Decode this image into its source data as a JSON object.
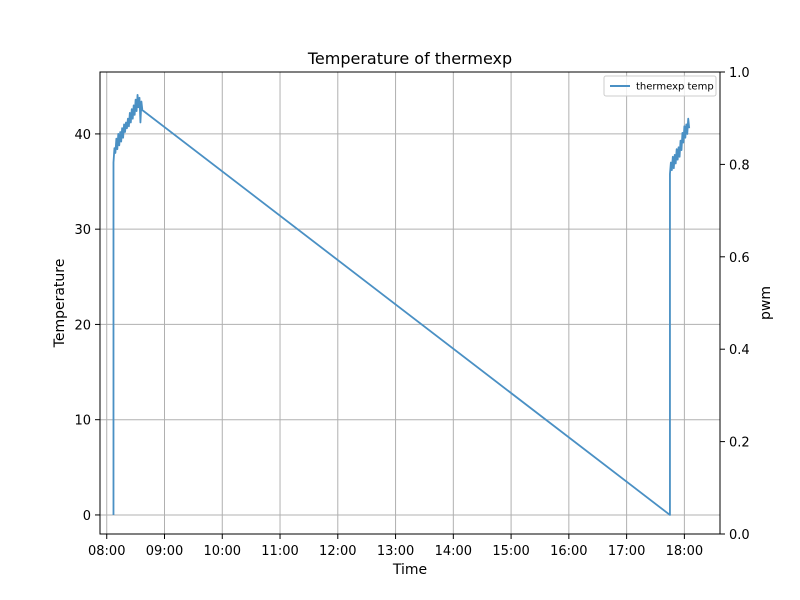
{
  "chart_data": {
    "type": "line",
    "title": "Temperature of thermexp",
    "xlabel": "Time",
    "ylabel": "Temperature",
    "y2label": "pwm",
    "x_ticks": [
      "08:00",
      "09:00",
      "10:00",
      "11:00",
      "12:00",
      "13:00",
      "14:00",
      "15:00",
      "16:00",
      "17:00",
      "18:00"
    ],
    "xlim": [
      "07:53",
      "18:37"
    ],
    "ylim": [
      -2,
      46.5
    ],
    "y_ticks": [
      0,
      10,
      20,
      30,
      40
    ],
    "y2lim": [
      0.0,
      1.0
    ],
    "y2_ticks": [
      "0.0",
      "0.2",
      "0.4",
      "0.6",
      "0.8",
      "1.0"
    ],
    "grid": true,
    "legend_position": "top-right",
    "series": [
      {
        "name": "thermexp temp",
        "color": "#4a90c4",
        "points": [
          [
            "08:07",
            0
          ],
          [
            "08:07",
            37
          ],
          [
            "08:08",
            38.5
          ],
          [
            "08:09",
            38
          ],
          [
            "08:10",
            39.5
          ],
          [
            "08:11",
            38.4
          ],
          [
            "08:12",
            40
          ],
          [
            "08:13",
            38.8
          ],
          [
            "08:14",
            40.2
          ],
          [
            "08:15",
            39.2
          ],
          [
            "08:16",
            40.6
          ],
          [
            "08:17",
            39.6
          ],
          [
            "08:18",
            41
          ],
          [
            "08:19",
            40.2
          ],
          [
            "08:20",
            41.2
          ],
          [
            "08:21",
            40.6
          ],
          [
            "08:22",
            41.6
          ],
          [
            "08:23",
            40.8
          ],
          [
            "08:24",
            42.2
          ],
          [
            "08:25",
            41.2
          ],
          [
            "08:26",
            42.6
          ],
          [
            "08:27",
            41.6
          ],
          [
            "08:28",
            43
          ],
          [
            "08:29",
            42
          ],
          [
            "08:30",
            43.6
          ],
          [
            "08:31",
            42.4
          ],
          [
            "08:32",
            44.1
          ],
          [
            "08:33",
            42.8
          ],
          [
            "08:34",
            43.8
          ],
          [
            "08:35",
            41.2
          ],
          [
            "08:36",
            43.4
          ],
          [
            "08:37",
            42.5
          ],
          [
            "17:45",
            0
          ],
          [
            "17:45",
            35.8
          ],
          [
            "17:46",
            37
          ],
          [
            "17:47",
            36.2
          ],
          [
            "17:48",
            37.6
          ],
          [
            "17:49",
            36.4
          ],
          [
            "17:50",
            37.8
          ],
          [
            "17:51",
            36.9
          ],
          [
            "17:52",
            38.4
          ],
          [
            "17:53",
            37.3
          ],
          [
            "17:54",
            38.6
          ],
          [
            "17:55",
            37.6
          ],
          [
            "17:56",
            39.3
          ],
          [
            "17:57",
            38.3
          ],
          [
            "17:58",
            40.1
          ],
          [
            "17:59",
            39.1
          ],
          [
            "18:00",
            40.8
          ],
          [
            "18:01",
            39.6
          ],
          [
            "18:02",
            41
          ],
          [
            "18:03",
            40
          ],
          [
            "18:04",
            41.6
          ],
          [
            "18:05",
            40.6
          ]
        ]
      }
    ]
  }
}
